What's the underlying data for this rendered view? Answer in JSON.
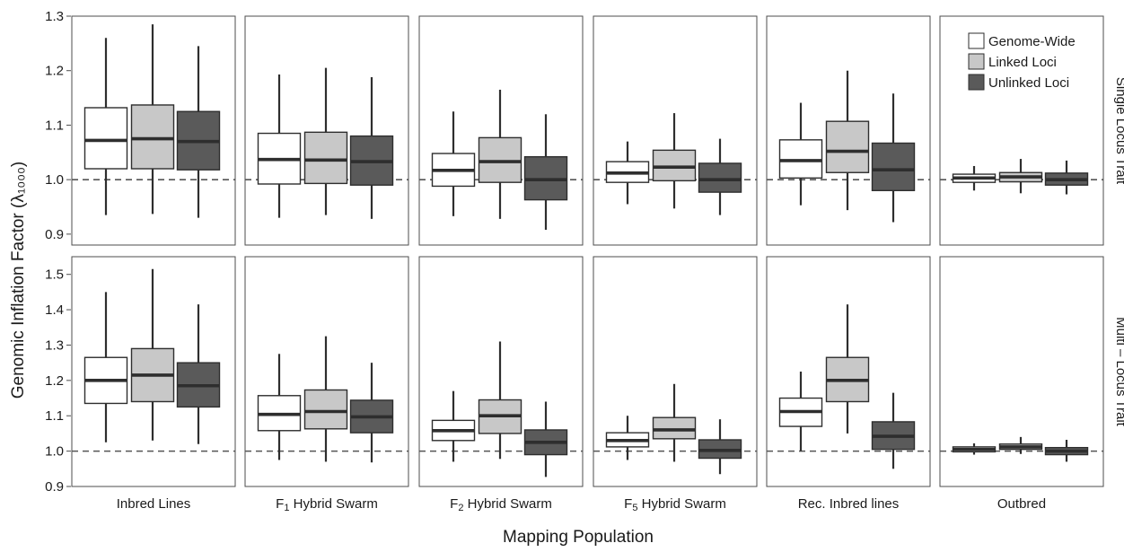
{
  "chart_data": {
    "type": "box",
    "xlabel": "Mapping Population",
    "ylabel": "Genomic Inflation Factor (λ₁₀₀₀)",
    "reference_line": 1.0,
    "populations": [
      {
        "label": "Inbred Lines"
      },
      {
        "label_parts": [
          "F",
          "1",
          " Hybrid Swarm"
        ]
      },
      {
        "label_parts": [
          "F",
          "2",
          " Hybrid Swarm"
        ]
      },
      {
        "label_parts": [
          "F",
          "5",
          " Hybrid Swarm"
        ]
      },
      {
        "label": "Rec. Inbred lines"
      },
      {
        "label": "Outbred"
      }
    ],
    "series": [
      {
        "name": "Genome-Wide",
        "color": "#ffffff"
      },
      {
        "name": "Linked Loci",
        "color": "#c8c8c8"
      },
      {
        "name": "Unlinked Loci",
        "color": "#5a5a5a"
      }
    ],
    "legend_position": "top-right",
    "rows": [
      {
        "label": "Single Locus Trait",
        "ylim": [
          0.88,
          1.3
        ],
        "ticks": [
          0.9,
          1.0,
          1.1,
          1.2,
          1.3
        ],
        "boxes": [
          [
            [
              0.935,
              1.02,
              1.072,
              1.132,
              1.26
            ],
            [
              0.937,
              1.02,
              1.075,
              1.137,
              1.285
            ],
            [
              0.93,
              1.018,
              1.07,
              1.125,
              1.245
            ]
          ],
          [
            [
              0.93,
              0.992,
              1.037,
              1.085,
              1.193
            ],
            [
              0.935,
              0.993,
              1.036,
              1.087,
              1.205
            ],
            [
              0.928,
              0.99,
              1.033,
              1.08,
              1.188
            ]
          ],
          [
            [
              0.933,
              0.988,
              1.017,
              1.048,
              1.125
            ],
            [
              0.928,
              0.995,
              1.033,
              1.077,
              1.165
            ],
            [
              0.908,
              0.963,
              1.0,
              1.042,
              1.12
            ]
          ],
          [
            [
              0.955,
              0.995,
              1.012,
              1.033,
              1.07
            ],
            [
              0.947,
              0.998,
              1.023,
              1.054,
              1.122
            ],
            [
              0.935,
              0.977,
              1.0,
              1.03,
              1.075
            ]
          ],
          [
            [
              0.953,
              1.003,
              1.035,
              1.073,
              1.141
            ],
            [
              0.944,
              1.013,
              1.052,
              1.107,
              1.2
            ],
            [
              0.922,
              0.98,
              1.018,
              1.067,
              1.158
            ]
          ],
          [
            [
              0.98,
              0.995,
              1.003,
              1.01,
              1.025
            ],
            [
              0.975,
              0.996,
              1.005,
              1.013,
              1.038
            ],
            [
              0.973,
              0.99,
              1.0,
              1.012,
              1.035
            ]
          ]
        ]
      },
      {
        "label": "Multi – Locus Trait",
        "ylim": [
          0.9,
          1.55
        ],
        "ticks": [
          0.9,
          1.0,
          1.1,
          1.2,
          1.3,
          1.4,
          1.5
        ],
        "boxes": [
          [
            [
              1.025,
              1.135,
              1.2,
              1.265,
              1.45
            ],
            [
              1.03,
              1.14,
              1.215,
              1.29,
              1.515
            ],
            [
              1.02,
              1.125,
              1.185,
              1.25,
              1.415
            ]
          ],
          [
            [
              0.975,
              1.058,
              1.104,
              1.157,
              1.275
            ],
            [
              0.97,
              1.063,
              1.112,
              1.173,
              1.325
            ],
            [
              0.968,
              1.052,
              1.097,
              1.144,
              1.25
            ]
          ],
          [
            [
              0.97,
              1.03,
              1.058,
              1.087,
              1.17
            ],
            [
              0.978,
              1.05,
              1.1,
              1.145,
              1.31
            ],
            [
              0.927,
              0.99,
              1.025,
              1.06,
              1.14
            ]
          ],
          [
            [
              0.975,
              1.012,
              1.03,
              1.052,
              1.1
            ],
            [
              0.97,
              1.035,
              1.06,
              1.095,
              1.19
            ],
            [
              0.935,
              0.98,
              1.002,
              1.032,
              1.09
            ]
          ],
          [
            [
              1.0,
              1.07,
              1.112,
              1.15,
              1.225
            ],
            [
              1.05,
              1.14,
              1.2,
              1.265,
              1.415
            ],
            [
              0.95,
              1.005,
              1.042,
              1.083,
              1.165
            ]
          ],
          [
            [
              0.99,
              0.998,
              1.005,
              1.012,
              1.022
            ],
            [
              0.992,
              1.005,
              1.012,
              1.02,
              1.04
            ],
            [
              0.97,
              0.99,
              1.0,
              1.01,
              1.032
            ]
          ]
        ]
      }
    ]
  }
}
